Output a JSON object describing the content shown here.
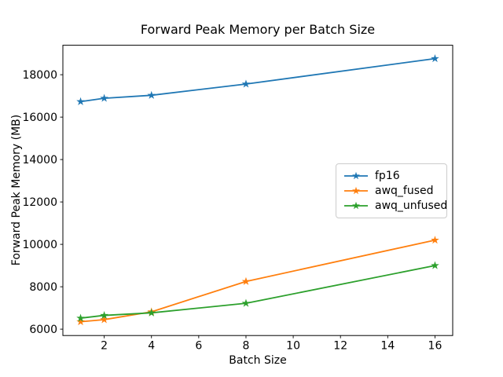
{
  "figure": {
    "background_color": "#ffffff",
    "text_color": "#000000",
    "spine_color": "#000000"
  },
  "chart_data": {
    "type": "line",
    "title": "Forward Peak Memory per Batch Size",
    "xlabel": "Batch Size",
    "ylabel": "Forward Peak Memory (MB)",
    "x": [
      1,
      2,
      4,
      8,
      16
    ],
    "series": [
      {
        "name": "fp16",
        "color": "#1f77b4",
        "marker": "star",
        "values": [
          16730,
          16890,
          17030,
          17560,
          18760
        ]
      },
      {
        "name": "awq_fused",
        "color": "#ff7f0e",
        "marker": "star",
        "values": [
          6350,
          6450,
          6820,
          8250,
          10200
        ]
      },
      {
        "name": "awq_unfused",
        "color": "#2ca02c",
        "marker": "star",
        "values": [
          6520,
          6650,
          6770,
          7220,
          9000
        ]
      }
    ],
    "xticks": [
      2,
      4,
      6,
      8,
      10,
      12,
      14,
      16
    ],
    "yticks": [
      6000,
      8000,
      10000,
      12000,
      14000,
      16000,
      18000
    ],
    "xlim": [
      0.25,
      16.75
    ],
    "ylim": [
      5700,
      19390
    ],
    "grid": false,
    "legend": {
      "position": "center-right",
      "border_color": "#cccccc",
      "background": "#ffffff"
    }
  }
}
